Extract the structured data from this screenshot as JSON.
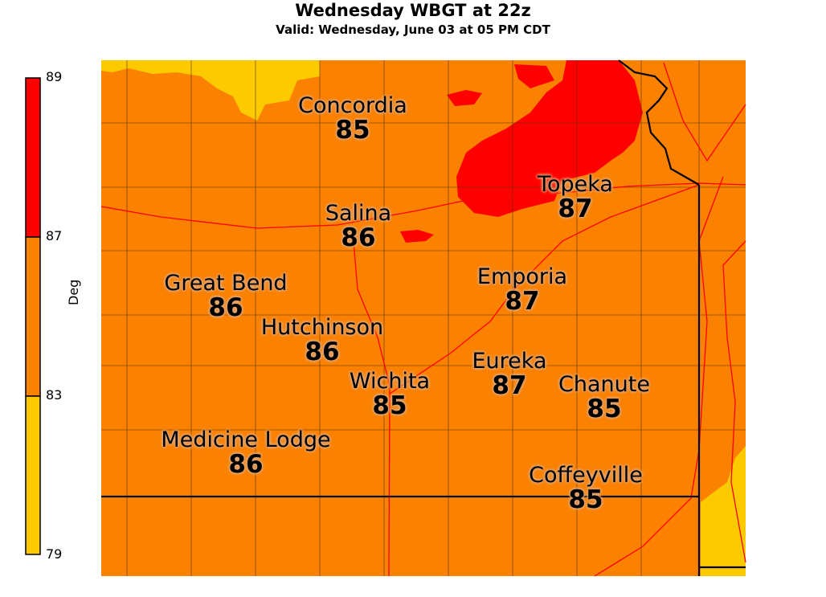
{
  "title": "Wednesday WBGT at 22z",
  "subtitle": "Valid: Wednesday, June 03 at 05 PM CDT",
  "colorbar": {
    "label": "Deg",
    "ticks": [
      "89",
      "87",
      "83",
      "79"
    ],
    "bins": [
      {
        "range": "87-89",
        "color": "#FF0000"
      },
      {
        "range": "83-87",
        "color": "#FB8100"
      },
      {
        "range": "79-83",
        "color": "#FDCA00"
      }
    ]
  },
  "colors": {
    "red": "#FF0000",
    "orange": "#FB8100",
    "yellow": "#FDCA00",
    "roads": "#FF0000",
    "borders": "#000000"
  },
  "cities": [
    {
      "name": "Concordia",
      "value": "85"
    },
    {
      "name": "Topeka",
      "value": "87"
    },
    {
      "name": "Salina",
      "value": "86"
    },
    {
      "name": "Great Bend",
      "value": "86"
    },
    {
      "name": "Emporia",
      "value": "87"
    },
    {
      "name": "Hutchinson",
      "value": "86"
    },
    {
      "name": "Eureka",
      "value": "87"
    },
    {
      "name": "Wichita",
      "value": "85"
    },
    {
      "name": "Chanute",
      "value": "85"
    },
    {
      "name": "Medicine Lodge",
      "value": "86"
    },
    {
      "name": "Coffeyville",
      "value": "85"
    }
  ]
}
